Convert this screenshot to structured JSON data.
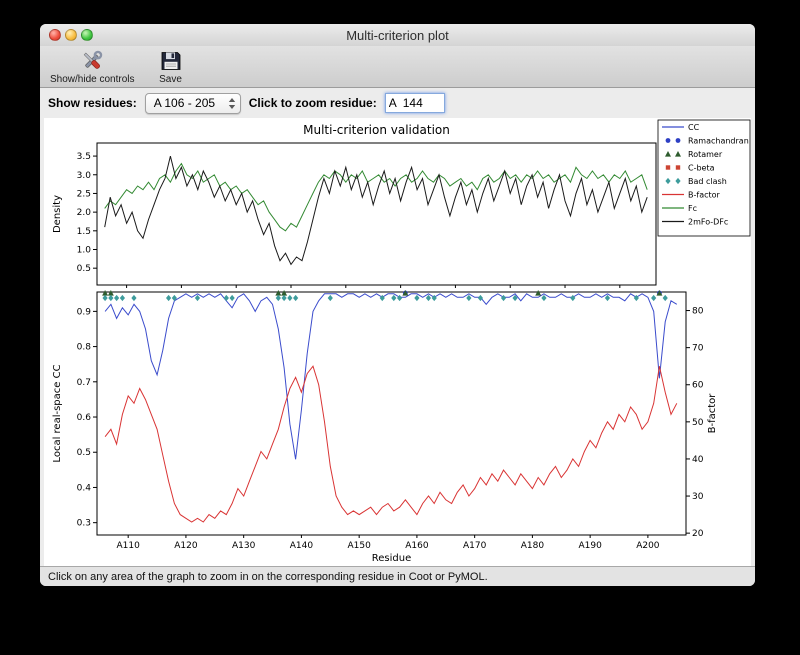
{
  "window": {
    "title": "Multi-criterion plot"
  },
  "toolbar": {
    "buttons": [
      {
        "label": "Show/hide controls",
        "icon": "tools-icon"
      },
      {
        "label": "Save",
        "icon": "save-icon"
      }
    ]
  },
  "controls": {
    "show_residues_label": "Show residues:",
    "residue_range_value": "A 106 - 205",
    "zoom_residue_label": "Click to zoom residue:",
    "zoom_residue_value": "A  144"
  },
  "status_bar": {
    "text": "Click on any area of the graph to zoom in on the corresponding residue in Coot or PyMOL."
  },
  "icons": {
    "tools-icon": "crossed screwdriver and wrench",
    "save-icon": "floppy disk",
    "stepper-arrows-icon": "up/down popup arrows",
    "close-icon": "red traffic light",
    "minimize-icon": "yellow traffic light",
    "maximize-icon": "green traffic light"
  },
  "chart_data": {
    "type": "line",
    "title": "Multi-criterion validation",
    "x_label": "Residue",
    "chain": "A",
    "x_start": 106,
    "x_end": 205,
    "xlim": [
      104.6,
      206.6
    ],
    "x_ticks": [
      110,
      120,
      130,
      140,
      150,
      160,
      170,
      180,
      190,
      200
    ],
    "x_tick_labels": [
      "A110",
      "A120",
      "A130",
      "A140",
      "A150",
      "A160",
      "A170",
      "A180",
      "A190",
      "A200"
    ],
    "top_plot": {
      "y_label": "Density",
      "ylim": [
        0.05,
        3.85
      ],
      "y_ticks": [
        0.5,
        1.0,
        1.5,
        2.0,
        2.5,
        3.0,
        3.5
      ],
      "grid": false,
      "series": [
        {
          "name": "Fc",
          "color": "#338a33",
          "values": [
            2.1,
            2.3,
            2.2,
            2.4,
            2.6,
            2.5,
            2.7,
            2.6,
            2.8,
            2.6,
            2.9,
            3.0,
            2.8,
            3.1,
            3.3,
            3.0,
            2.9,
            3.1,
            2.8,
            2.9,
            3.0,
            2.7,
            2.8,
            2.6,
            2.7,
            2.5,
            2.6,
            2.4,
            2.2,
            2.3,
            2.0,
            1.8,
            1.6,
            1.5,
            1.7,
            1.6,
            1.9,
            2.2,
            2.5,
            2.8,
            3.0,
            2.9,
            3.1,
            3.0,
            2.8,
            3.0,
            2.9,
            3.1,
            2.8,
            2.9,
            3.0,
            2.8,
            2.9,
            2.7,
            2.9,
            3.0,
            2.8,
            2.9,
            3.1,
            2.9,
            2.8,
            3.0,
            2.9,
            2.7,
            2.8,
            2.9,
            2.7,
            2.8,
            2.6,
            2.9,
            3.0,
            2.8,
            2.9,
            3.1,
            2.9,
            3.0,
            2.8,
            3.0,
            2.9,
            3.1,
            2.9,
            3.0,
            2.8,
            2.9,
            3.0,
            2.8,
            3.2,
            3.0,
            2.9,
            3.1,
            2.9,
            3.0,
            2.8,
            3.0,
            2.9,
            3.1,
            2.8,
            2.9,
            3.0,
            2.6
          ]
        },
        {
          "name": "2mFo-DFc",
          "color": "#1a1a1a",
          "values": [
            1.6,
            2.4,
            1.9,
            2.2,
            1.7,
            2.0,
            1.5,
            1.3,
            1.8,
            2.2,
            2.6,
            2.9,
            3.5,
            2.9,
            3.2,
            2.7,
            3.0,
            2.6,
            3.1,
            2.8,
            2.4,
            2.7,
            2.3,
            2.6,
            2.2,
            2.5,
            2.0,
            2.3,
            1.8,
            1.4,
            1.7,
            1.1,
            0.7,
            0.9,
            0.6,
            0.8,
            0.7,
            1.2,
            1.8,
            2.4,
            2.9,
            2.5,
            3.1,
            2.7,
            3.2,
            2.6,
            3.0,
            2.4,
            2.8,
            2.2,
            2.7,
            3.1,
            2.5,
            2.9,
            2.3,
            2.8,
            3.2,
            2.6,
            2.9,
            2.2,
            2.6,
            3.0,
            2.4,
            1.9,
            2.4,
            2.8,
            2.2,
            2.6,
            2.0,
            2.5,
            2.9,
            2.3,
            2.7,
            3.1,
            2.5,
            2.9,
            2.2,
            2.7,
            3.0,
            2.4,
            2.8,
            2.1,
            2.6,
            3.0,
            2.3,
            1.9,
            2.5,
            2.9,
            2.2,
            2.6,
            2.0,
            2.4,
            2.8,
            2.1,
            2.5,
            2.9,
            2.3,
            2.7,
            2.0,
            2.4
          ]
        }
      ]
    },
    "bottom_plot": {
      "y_label_left": "Local real-space CC",
      "y_label_right": "B-factor",
      "ylim_left": [
        0.265,
        0.955
      ],
      "ylim_right": [
        19.5,
        85
      ],
      "y_ticks_left": [
        0.3,
        0.4,
        0.5,
        0.6,
        0.7,
        0.8,
        0.9
      ],
      "y_ticks_right": [
        20,
        30,
        40,
        50,
        60,
        70,
        80
      ],
      "grid": false,
      "series": [
        {
          "name": "CC",
          "axis": "left",
          "color": "#3b4ccc",
          "values": [
            0.9,
            0.92,
            0.88,
            0.91,
            0.89,
            0.92,
            0.9,
            0.85,
            0.76,
            0.72,
            0.79,
            0.88,
            0.93,
            0.94,
            0.95,
            0.94,
            0.95,
            0.94,
            0.95,
            0.94,
            0.95,
            0.93,
            0.91,
            0.94,
            0.95,
            0.93,
            0.9,
            0.93,
            0.94,
            0.92,
            0.85,
            0.74,
            0.58,
            0.48,
            0.62,
            0.78,
            0.9,
            0.93,
            0.95,
            0.95,
            0.95,
            0.94,
            0.95,
            0.95,
            0.94,
            0.95,
            0.94,
            0.95,
            0.94,
            0.95,
            0.95,
            0.94,
            0.94,
            0.95,
            0.95,
            0.94,
            0.95,
            0.94,
            0.95,
            0.94,
            0.95,
            0.94,
            0.94,
            0.95,
            0.94,
            0.94,
            0.92,
            0.94,
            0.95,
            0.94,
            0.94,
            0.95,
            0.93,
            0.95,
            0.94,
            0.94,
            0.95,
            0.94,
            0.94,
            0.95,
            0.94,
            0.94,
            0.95,
            0.94,
            0.94,
            0.95,
            0.94,
            0.95,
            0.94,
            0.94,
            0.93,
            0.95,
            0.94,
            0.95,
            0.94,
            0.9,
            0.71,
            0.87,
            0.93,
            0.92
          ]
        },
        {
          "name": "B-factor",
          "axis": "right",
          "color": "#d93434",
          "values": [
            46,
            48,
            44,
            52,
            57,
            55,
            59,
            56,
            52,
            48,
            41,
            34,
            28,
            25,
            24,
            23,
            24,
            23,
            25,
            24,
            26,
            25,
            28,
            32,
            30,
            34,
            38,
            42,
            40,
            44,
            48,
            54,
            59,
            62,
            58,
            63,
            65,
            60,
            50,
            38,
            30,
            27,
            25,
            26,
            25,
            26,
            27,
            25,
            27,
            28,
            26,
            27,
            29,
            27,
            25,
            28,
            30,
            28,
            31,
            29,
            28,
            31,
            33,
            30,
            32,
            35,
            33,
            36,
            34,
            37,
            35,
            33,
            36,
            34,
            32,
            35,
            33,
            36,
            38,
            35,
            37,
            40,
            38,
            42,
            45,
            43,
            47,
            50,
            48,
            52,
            50,
            54,
            52,
            48,
            50,
            55,
            65,
            58,
            52,
            55
          ]
        }
      ],
      "outliers": {
        "ramachandran": {
          "marker": "circle",
          "color": "#2d3fc4",
          "y": 0.952,
          "residues": [
            158,
            202
          ]
        },
        "rotamer": {
          "marker": "triangle",
          "color": "#2f5c2f",
          "y": 0.952,
          "residues": [
            106,
            107,
            136,
            137,
            158,
            181,
            202
          ]
        },
        "cbeta": {
          "marker": "square",
          "color": "#cc4433",
          "y": 0.951,
          "residues": []
        },
        "clash": {
          "marker": "diamond",
          "color": "#3e9c9c",
          "y": 0.938,
          "residues": [
            106,
            107,
            108,
            109,
            111,
            117,
            118,
            122,
            127,
            128,
            136,
            137,
            138,
            139,
            145,
            154,
            156,
            157,
            160,
            162,
            163,
            169,
            171,
            175,
            177,
            182,
            187,
            193,
            198,
            201,
            203
          ]
        }
      }
    },
    "legend": {
      "position": "top-right",
      "entries": [
        {
          "label": "CC",
          "type": "line",
          "color": "#3b4ccc"
        },
        {
          "label": "Ramachandran",
          "type": "circle",
          "color": "#2d3fc4"
        },
        {
          "label": "Rotamer",
          "type": "triangle",
          "color": "#2f5c2f"
        },
        {
          "label": "C-beta",
          "type": "square",
          "color": "#cc4433"
        },
        {
          "label": "Bad clash",
          "type": "diamond",
          "color": "#3e9c9c"
        },
        {
          "label": "B-factor",
          "type": "line",
          "color": "#d93434"
        },
        {
          "label": "Fc",
          "type": "line",
          "color": "#338a33"
        },
        {
          "label": "2mFo-DFc",
          "type": "line",
          "color": "#1a1a1a"
        }
      ]
    }
  }
}
